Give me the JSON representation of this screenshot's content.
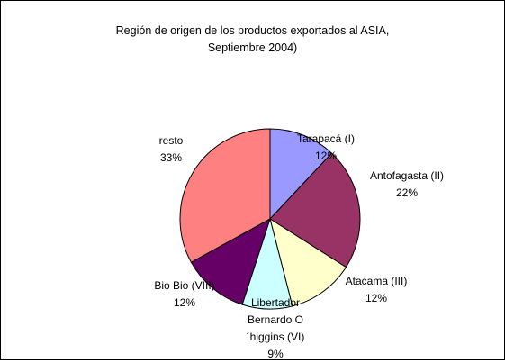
{
  "chart_data": {
    "type": "pie",
    "title": [
      "Región de origen de los productos exportados al ASIA,",
      "Septiembre 2004)"
    ],
    "categories": [
      "Tarapacá (I)",
      "Antofagasta (II)",
      "Atacama (III)",
      "Libertador Bernardo O´higgins (VI)",
      "Bio Bio (VIII)",
      "resto"
    ],
    "values": [
      12,
      22,
      12,
      9,
      12,
      33
    ],
    "value_labels": [
      "12%",
      "22%",
      "12%",
      "9%",
      "12%",
      "33%"
    ],
    "colors": [
      "#9999ff",
      "#993366",
      "#ffffcc",
      "#ccffff",
      "#660066",
      "#ff8080"
    ]
  }
}
